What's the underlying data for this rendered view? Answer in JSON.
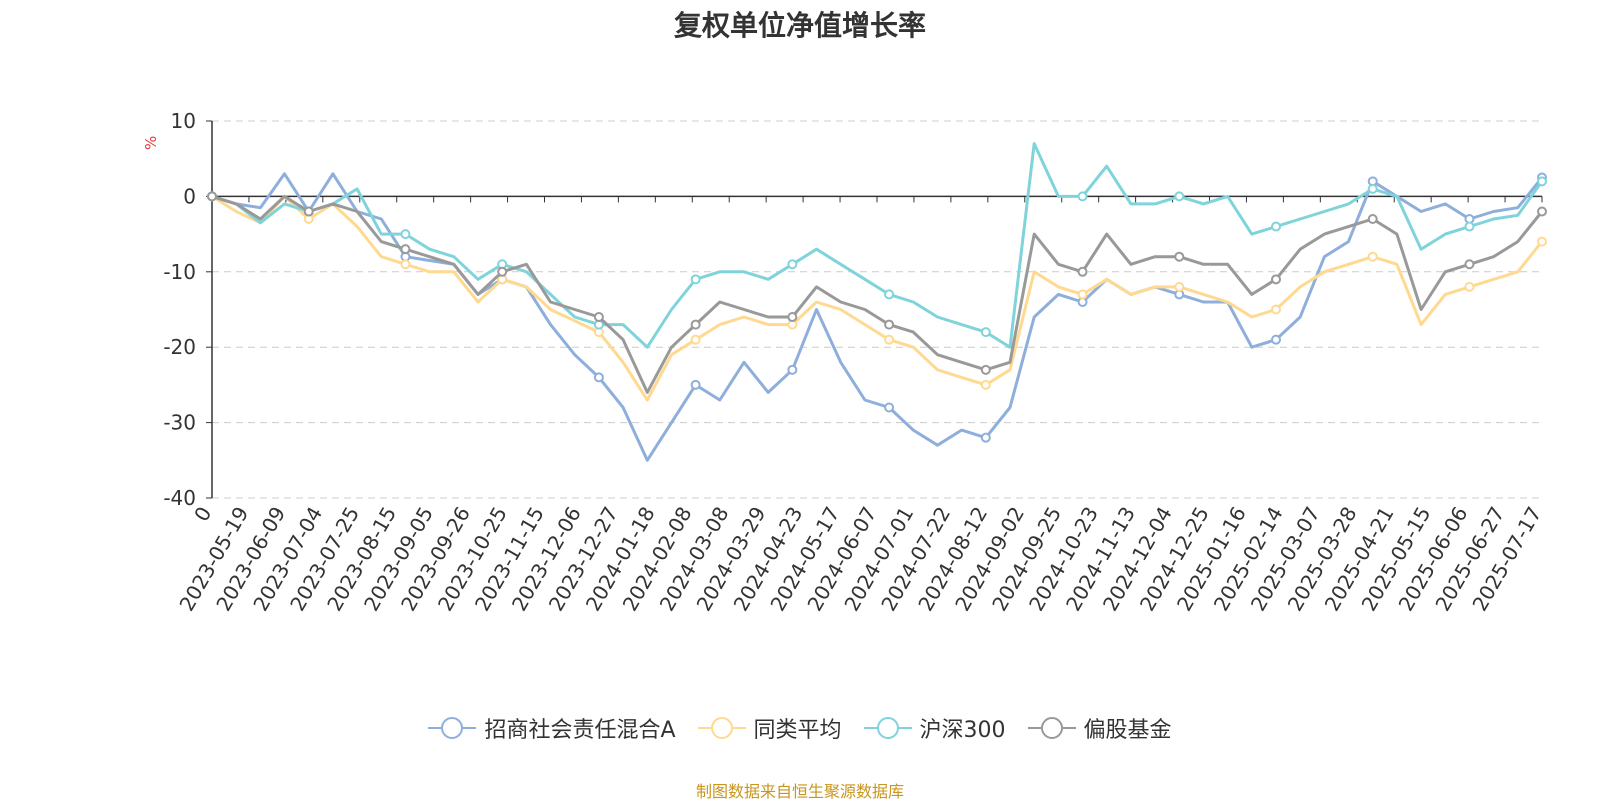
{
  "title": "复权单位净值增长率",
  "unit": "%",
  "source": "制图数据来自恒生聚源数据库",
  "chart_data": {
    "type": "line",
    "title": "复权单位净值增长率",
    "ylabel": "%",
    "ylim": [
      -40,
      10
    ],
    "yticks": [
      10,
      0,
      -10,
      -20,
      -30,
      -40
    ],
    "grid": true,
    "legend_position": "bottom-center",
    "x_labels": [
      "0",
      "2023-05-19",
      "2023-06-09",
      "2023-07-04",
      "2023-07-25",
      "2023-08-15",
      "2023-09-05",
      "2023-09-26",
      "2023-10-25",
      "2023-11-15",
      "2023-12-06",
      "2023-12-27",
      "2024-01-18",
      "2024-02-08",
      "2024-03-08",
      "2024-03-29",
      "2024-04-23",
      "2024-05-17",
      "2024-06-07",
      "2024-07-01",
      "2024-07-22",
      "2024-08-12",
      "2024-09-02",
      "2024-09-25",
      "2024-10-23",
      "2024-11-13",
      "2024-12-04",
      "2024-12-25",
      "2025-01-16",
      "2025-02-14",
      "2025-03-07",
      "2025-03-28",
      "2025-04-21",
      "2025-05-15",
      "2025-06-06",
      "2025-06-27",
      "2025-07-17"
    ],
    "series": [
      {
        "name": "招商社会责任混合A",
        "color": "#8eaedb",
        "values": [
          0,
          -1,
          -1.5,
          3,
          -2,
          3,
          -2,
          -3,
          -8,
          -8.5,
          -9,
          -13,
          -11,
          -12,
          -17,
          -21,
          -24,
          -28,
          -35,
          -30,
          -25,
          -27,
          -22,
          -26,
          -23,
          -15,
          -22,
          -27,
          -28,
          -31,
          -33,
          -31,
          -32,
          -28,
          -16,
          -13,
          -14,
          -11,
          -13,
          -12,
          -13,
          -14,
          -14,
          -20,
          -19,
          -16,
          -8,
          -6,
          2,
          0,
          -2,
          -1,
          -3,
          -2,
          -1.5,
          2.5
        ]
      },
      {
        "name": "同类平均",
        "color": "#ffd990",
        "values": [
          0,
          -2,
          -3.5,
          0,
          -3,
          -1,
          -4,
          -8,
          -9,
          -10,
          -10,
          -14,
          -11,
          -12,
          -15,
          -16.5,
          -18,
          -22,
          -27,
          -21,
          -19,
          -17,
          -16,
          -17,
          -17,
          -14,
          -15,
          -17,
          -19,
          -20,
          -23,
          -24,
          -25,
          -23,
          -10,
          -12,
          -13,
          -11,
          -13,
          -12,
          -12,
          -13,
          -14,
          -16,
          -15,
          -12,
          -10,
          -9,
          -8,
          -9,
          -17,
          -13,
          -12,
          -11,
          -10,
          -6
        ]
      },
      {
        "name": "沪深300",
        "color": "#7fd4db",
        "values": [
          0,
          -1,
          -3.5,
          -1,
          -2,
          -1,
          1,
          -5,
          -5,
          -7,
          -8,
          -11,
          -9,
          -10,
          -13,
          -16,
          -17,
          -17,
          -20,
          -15,
          -11,
          -10,
          -10,
          -11,
          -9,
          -7,
          -9,
          -11,
          -13,
          -14,
          -16,
          -17,
          -18,
          -20,
          7,
          0,
          0,
          4,
          -1,
          -1,
          0,
          -1,
          0,
          -5,
          -4,
          -3,
          -2,
          -1,
          1,
          0,
          -7,
          -5,
          -4,
          -3,
          -2.5,
          2
        ]
      },
      {
        "name": "偏股基金",
        "color": "#999999",
        "values": [
          0,
          -1,
          -3,
          0,
          -2,
          -1,
          -2,
          -6,
          -7,
          -8,
          -9,
          -13,
          -10,
          -9,
          -14,
          -15,
          -16,
          -19,
          -26,
          -20,
          -17,
          -14,
          -15,
          -16,
          -16,
          -12,
          -14,
          -15,
          -17,
          -18,
          -21,
          -22,
          -23,
          -22,
          -5,
          -9,
          -10,
          -5,
          -9,
          -8,
          -8,
          -9,
          -9,
          -13,
          -11,
          -7,
          -5,
          -4,
          -3,
          -5,
          -15,
          -10,
          -9,
          -8,
          -6,
          -2
        ]
      }
    ]
  }
}
